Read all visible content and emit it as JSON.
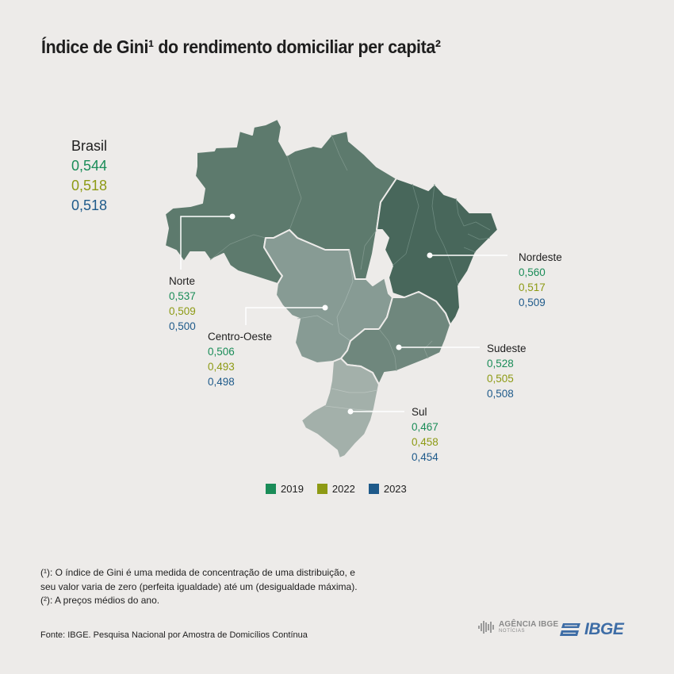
{
  "title": "Índice de Gini¹ do rendimento domiciliar per capita²",
  "colors": {
    "y2019": "#1a8c58",
    "y2022": "#8d9a14",
    "y2023": "#1e5a8a",
    "norte": "#5d7a6d",
    "nordeste": "#48675b",
    "centro_oeste": "#879b94",
    "sudeste": "#6f877d",
    "sul": "#a3b0aa"
  },
  "brasil": {
    "name": "Brasil",
    "v2019": "0,544",
    "v2022": "0,518",
    "v2023": "0,518"
  },
  "regions": {
    "norte": {
      "name": "Norte",
      "v2019": "0,537",
      "v2022": "0,509",
      "v2023": "0,500"
    },
    "nordeste": {
      "name": "Nordeste",
      "v2019": "0,560",
      "v2022": "0,517",
      "v2023": "0,509"
    },
    "centro_oeste": {
      "name": "Centro-Oeste",
      "v2019": "0,506",
      "v2022": "0,493",
      "v2023": "0,498"
    },
    "sudeste": {
      "name": "Sudeste",
      "v2019": "0,528",
      "v2022": "0,505",
      "v2023": "0,508"
    },
    "sul": {
      "name": "Sul",
      "v2019": "0,467",
      "v2022": "0,458",
      "v2023": "0,454"
    }
  },
  "legend": [
    "2019",
    "2022",
    "2023"
  ],
  "notes": {
    "line1": "(¹): O índice de Gini é uma medida de concentração de uma distribuição, e",
    "line2": "seu valor varia de zero (perfeita igualdade) até um (desigualdade máxima).",
    "line3": "(²): A preços médios do ano."
  },
  "source": "Fonte: IBGE. Pesquisa Nacional por Amostra de Domicílios Contínua",
  "logos": {
    "agencia": "AGÊNCIA IBGE",
    "agencia_sub": "NOTÍCIAS",
    "ibge": "IBGE"
  }
}
